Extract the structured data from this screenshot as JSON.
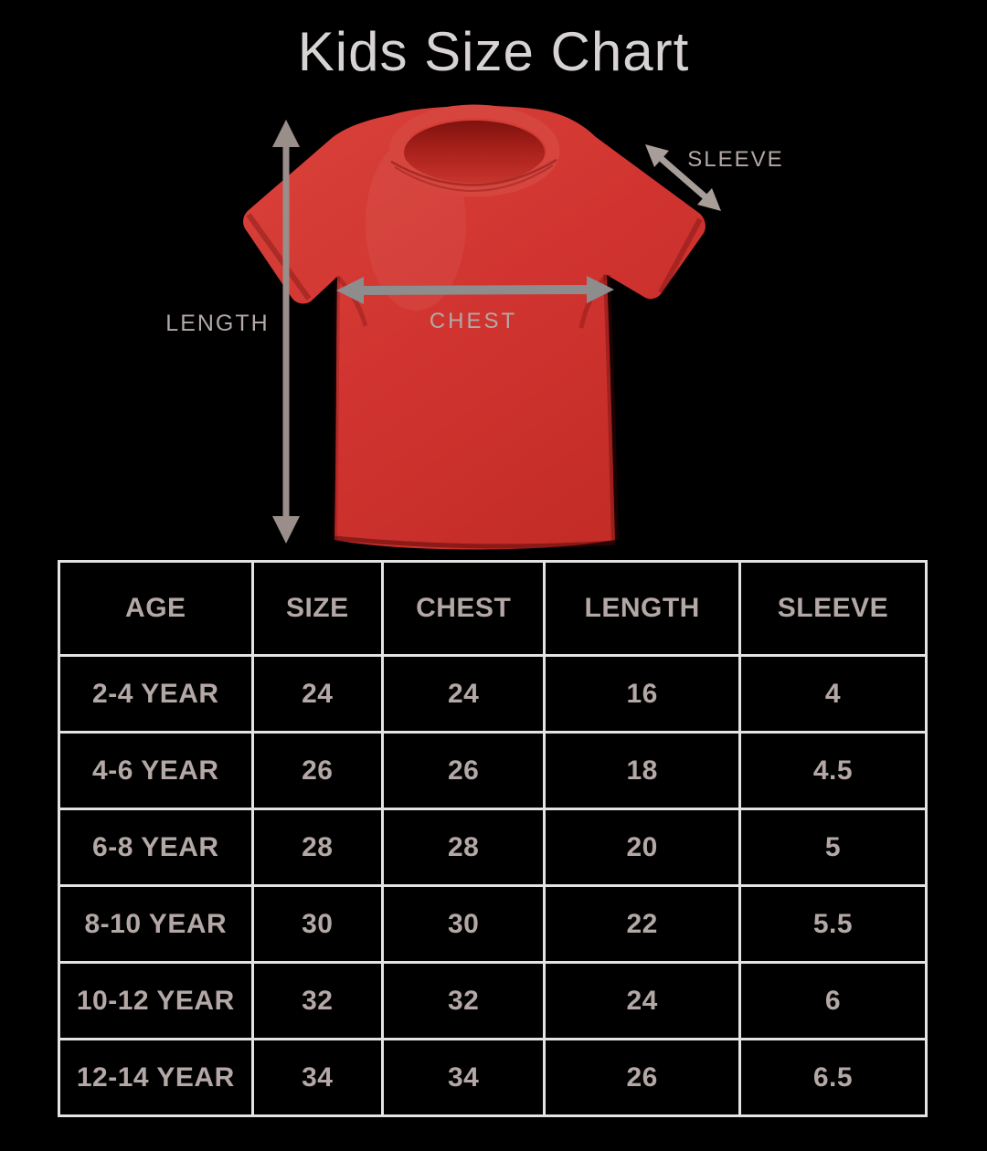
{
  "title": "Kids Size Chart",
  "diagram": {
    "length_label": "LENGTH",
    "chest_label": "CHEST",
    "sleeve_label": "SLEEVE",
    "shirt_color": "#d13430",
    "length_arrow_color": "#9a8e8b",
    "chest_arrow_color": "#8d8d8d",
    "sleeve_arrow_color": "#a89e99"
  },
  "table": {
    "headers": [
      "AGE",
      "SIZE",
      "CHEST",
      "LENGTH",
      "SLEEVE"
    ],
    "rows": [
      [
        "2-4 YEAR",
        "24",
        "24",
        "16",
        "4"
      ],
      [
        "4-6 YEAR",
        "26",
        "26",
        "18",
        "4.5"
      ],
      [
        "6-8 YEAR",
        "28",
        "28",
        "20",
        "5"
      ],
      [
        "8-10 YEAR",
        "30",
        "30",
        "22",
        "5.5"
      ],
      [
        "10-12 YEAR",
        "32",
        "32",
        "24",
        "6"
      ],
      [
        "12-14 YEAR",
        "34",
        "34",
        "26",
        "6.5"
      ]
    ],
    "text_color": "#b3a8a6",
    "border_color": "#e4e2e2",
    "background_color": "#000000"
  },
  "title_color": "#d6d3d2",
  "background_color": "#000000"
}
